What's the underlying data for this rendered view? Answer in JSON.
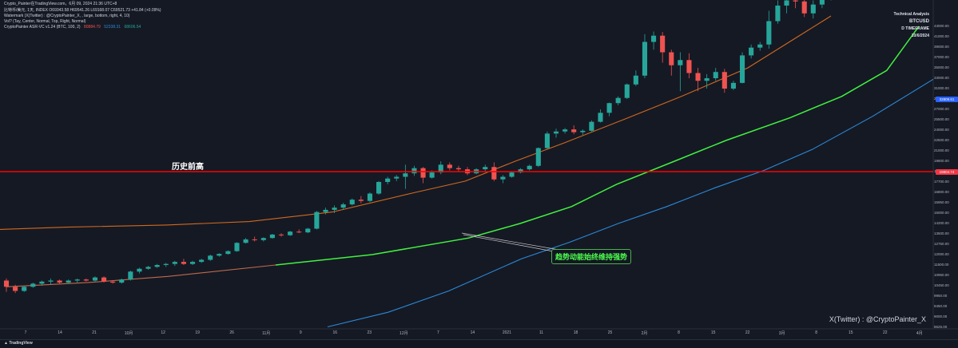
{
  "header": {
    "snapshot_line": "Crypto_Painter在TradingView.com，6月 09, 2024 21:36 UTC+8",
    "ohlc_line": "比特币/美元, 1天, INDEX  O69343.58  H69541.26  L69168.07  C69521.73 +41.84 (+0.09%)",
    "watermark_line": "Watermark (X(Twitter) : @CryptoPainter_X, , large, bottom, right, 4, 10)",
    "vol_line": "Vol? (Tay, Center, Normal, Top, Right, Normal)",
    "asr_line": "CryptoPainter ASR-VC v1.24 (BTC, 100, 2)",
    "asr_values": [
      "80884.79",
      "52338.31",
      "68606.54"
    ]
  },
  "legend": {
    "title": "Technical Analysis",
    "pair": "BTCUSD",
    "timeframe": "D TIMEFRAME",
    "date": "10/6/2024"
  },
  "annotations": {
    "ath_label": "历史前高",
    "momentum_label": "趋势动能始终维持强势",
    "watermark": "X(Twitter) : @CryptoPainter_X"
  },
  "tradingview": {
    "logo_text": "TradingView"
  },
  "price_tags": {
    "ath_price": "19804.74",
    "blue_line_price": "32809.61"
  },
  "colors": {
    "background": "#151924",
    "up_candle": "#26a69a",
    "down_candle": "#ef5350",
    "ath_line": "#ff0000",
    "orange_ma": "#d2691e",
    "green_ma": "#41f23f",
    "blue_ma": "#2b8ad8",
    "brown_ma": "#c06a4a"
  },
  "chart_data": {
    "type": "candlestick",
    "title": "",
    "yaxis": {
      "labels": [
        "43000.00",
        "41000.00",
        "39000.00",
        "37000.00",
        "35000.00",
        "33000.00",
        "31000.00",
        "29000.00",
        "27000.00",
        "25500.00",
        "24000.00",
        "22500.00",
        "21000.00",
        "19800.00",
        "18900.00",
        "17700.00",
        "16800.00",
        "15950.00",
        "15000.00",
        "14200.00",
        "13500.00",
        "12750.00",
        "12000.00",
        "11500.00",
        "10950.00",
        "10450.00",
        "9950.00",
        "9450.00",
        "9000.00",
        "8625.00"
      ],
      "range": [
        8400,
        45000
      ]
    },
    "xaxis": {
      "labels": [
        "7",
        "14",
        "21",
        "10月",
        "12",
        "19",
        "26",
        "11月",
        "9",
        "16",
        "23",
        "12月",
        "7",
        "14",
        "2021",
        "11",
        "18",
        "25",
        "2月",
        "8",
        "15",
        "22",
        "3月",
        "8",
        "15",
        "22",
        "4月"
      ]
    },
    "ath_level": 19800,
    "candles_ohlc": [
      [
        10700,
        10800,
        10150,
        10400
      ],
      [
        10400,
        10500,
        10100,
        10200
      ],
      [
        10200,
        10450,
        10150,
        10400
      ],
      [
        10400,
        10600,
        10350,
        10550
      ],
      [
        10550,
        10700,
        10450,
        10650
      ],
      [
        10650,
        10800,
        10500,
        10700
      ],
      [
        10700,
        10750,
        10550,
        10600
      ],
      [
        10600,
        10750,
        10550,
        10700
      ],
      [
        10700,
        10800,
        10600,
        10750
      ],
      [
        10750,
        10800,
        10650,
        10700
      ],
      [
        10700,
        10900,
        10650,
        10850
      ],
      [
        10850,
        10900,
        10600,
        10650
      ],
      [
        10650,
        10700,
        10550,
        10600
      ],
      [
        10600,
        10800,
        10550,
        10750
      ],
      [
        10750,
        11200,
        10700,
        11150
      ],
      [
        11150,
        11350,
        11050,
        11300
      ],
      [
        11300,
        11450,
        11250,
        11400
      ],
      [
        11400,
        11550,
        11350,
        11500
      ],
      [
        11500,
        11600,
        11400,
        11550
      ],
      [
        11550,
        11700,
        11450,
        11650
      ],
      [
        11650,
        11800,
        11500,
        11550
      ],
      [
        11550,
        11700,
        11500,
        11650
      ],
      [
        11650,
        11800,
        11600,
        11750
      ],
      [
        11750,
        12000,
        11700,
        11950
      ],
      [
        11950,
        12100,
        11900,
        12050
      ],
      [
        12050,
        12300,
        12000,
        12250
      ],
      [
        12250,
        12900,
        12200,
        12850
      ],
      [
        12850,
        13200,
        12800,
        13100
      ],
      [
        13100,
        13300,
        12950,
        13050
      ],
      [
        13050,
        13250,
        12950,
        13200
      ],
      [
        13200,
        13500,
        13150,
        13450
      ],
      [
        13450,
        13550,
        13300,
        13400
      ],
      [
        13400,
        13700,
        13350,
        13650
      ],
      [
        13650,
        13800,
        13550,
        13600
      ],
      [
        13600,
        13900,
        13550,
        13850
      ],
      [
        13850,
        15200,
        13800,
        15100
      ],
      [
        15100,
        15500,
        14900,
        15300
      ],
      [
        15300,
        15700,
        15000,
        15500
      ],
      [
        15500,
        15950,
        15300,
        15800
      ],
      [
        15800,
        16300,
        15700,
        16200
      ],
      [
        16200,
        16500,
        15900,
        16100
      ],
      [
        16100,
        16800,
        16000,
        16700
      ],
      [
        16700,
        17800,
        16600,
        17700
      ],
      [
        17700,
        18300,
        17500,
        18100
      ],
      [
        18100,
        18500,
        17800,
        18300
      ],
      [
        18300,
        19500,
        17100,
        18700
      ],
      [
        18700,
        19400,
        18400,
        19200
      ],
      [
        19200,
        19300,
        17600,
        18200
      ],
      [
        18200,
        19000,
        18100,
        18800
      ],
      [
        18800,
        19800,
        18600,
        19500
      ],
      [
        19500,
        19700,
        19000,
        19200
      ],
      [
        19200,
        19400,
        18900,
        19100
      ],
      [
        19100,
        19300,
        18500,
        18700
      ],
      [
        18700,
        19200,
        18600,
        19100
      ],
      [
        19100,
        19500,
        18900,
        19300
      ],
      [
        19300,
        19700,
        17800,
        18000
      ],
      [
        18000,
        18500,
        17600,
        18300
      ],
      [
        18300,
        18900,
        18200,
        18800
      ],
      [
        18800,
        19200,
        18700,
        19100
      ],
      [
        19100,
        19500,
        19000,
        19400
      ],
      [
        19400,
        21500,
        19300,
        21400
      ],
      [
        21400,
        23800,
        21300,
        23500
      ],
      [
        23500,
        24200,
        22900,
        23800
      ],
      [
        23800,
        24300,
        23500,
        24100
      ],
      [
        24100,
        24700,
        23400,
        23700
      ],
      [
        23700,
        24100,
        23300,
        23900
      ],
      [
        23900,
        25400,
        23800,
        25200
      ],
      [
        25200,
        27000,
        25100,
        26500
      ],
      [
        26500,
        28300,
        26000,
        28200
      ],
      [
        28200,
        29500,
        27800,
        29200
      ],
      [
        29200,
        32000,
        29000,
        31800
      ],
      [
        31800,
        34500,
        31500,
        33500
      ],
      [
        33500,
        41500,
        33000,
        40000
      ],
      [
        40000,
        42000,
        38500,
        41200
      ],
      [
        41200,
        41900,
        36000,
        38000
      ],
      [
        38000,
        38500,
        33500,
        35500
      ],
      [
        35500,
        38000,
        30500,
        36500
      ],
      [
        36500,
        37800,
        33000,
        34000
      ],
      [
        34000,
        35000,
        30500,
        32500
      ],
      [
        32500,
        33800,
        31000,
        33000
      ],
      [
        33000,
        35000,
        32500,
        34200
      ],
      [
        34200,
        34800,
        30200,
        31000
      ],
      [
        31000,
        32500,
        30700,
        32100
      ],
      [
        32100,
        38000,
        32000,
        37400
      ],
      [
        37400,
        39500,
        36800,
        38900
      ],
      [
        38900,
        40000,
        38300,
        39500
      ],
      [
        39500,
        46000,
        38700,
        44000
      ],
      [
        44000,
        48000,
        43500,
        47000
      ],
      [
        47000,
        49000,
        45500,
        48000
      ],
      [
        48000,
        50000,
        46500,
        47800
      ],
      [
        47800,
        49500,
        44800,
        45500
      ],
      [
        45500,
        48000,
        44500,
        47200
      ],
      [
        47200,
        49000,
        46500,
        48500
      ],
      [
        48500,
        52000,
        48000,
        51000
      ]
    ],
    "series": [
      {
        "name": "",
        "color": "#d2691e"
      },
      {
        "name": "",
        "color": "#41f23f"
      },
      {
        "name": "",
        "color": "#2b8ad8"
      },
      {
        "name": "",
        "color": "#c06a4a"
      }
    ],
    "grid": false
  }
}
